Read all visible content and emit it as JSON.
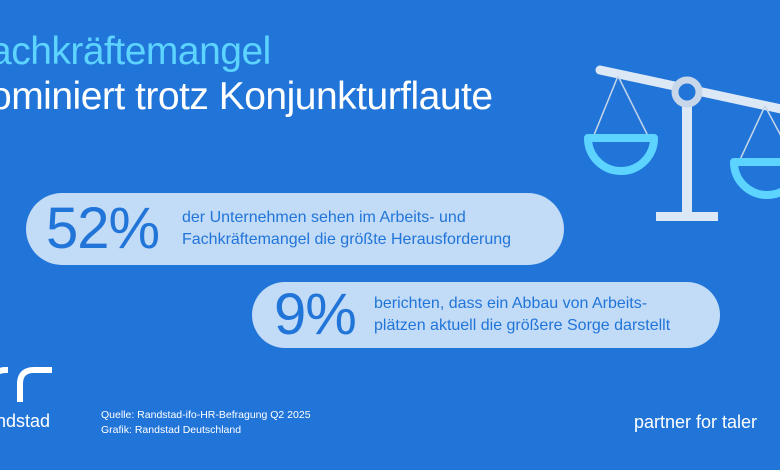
{
  "headline": {
    "line1": "achkräftemangel",
    "line2": "ominiert trotz Konjunkturflaute"
  },
  "stats": [
    {
      "value": "52%",
      "text_line1": "der Unternehmen sehen im Arbeits- und",
      "text_line2": "Fachkräftemangel die größte Herausforderung"
    },
    {
      "value": "9%",
      "text_line1": "berichten, dass ein Abbau von Arbeits-",
      "text_line2": "plätzen aktuell die größere Sorge darstellt"
    }
  ],
  "footer": {
    "logo_word": "ndstad",
    "source_line1": "Quelle: Randstad-ifo-HR-Befragung Q2 2025",
    "source_line2": "Grafik: Randstad Deutschland",
    "tagline": "partner for taler"
  },
  "icons": {
    "scale": "balance-scale-icon",
    "logo": "randstad-logo"
  },
  "colors": {
    "background": "#2175d9",
    "accent_cyan": "#5cd4ff",
    "pill": "#c2dbf6",
    "scale_light": "#dce8f6",
    "scale_plate": "#c7d6e8"
  }
}
